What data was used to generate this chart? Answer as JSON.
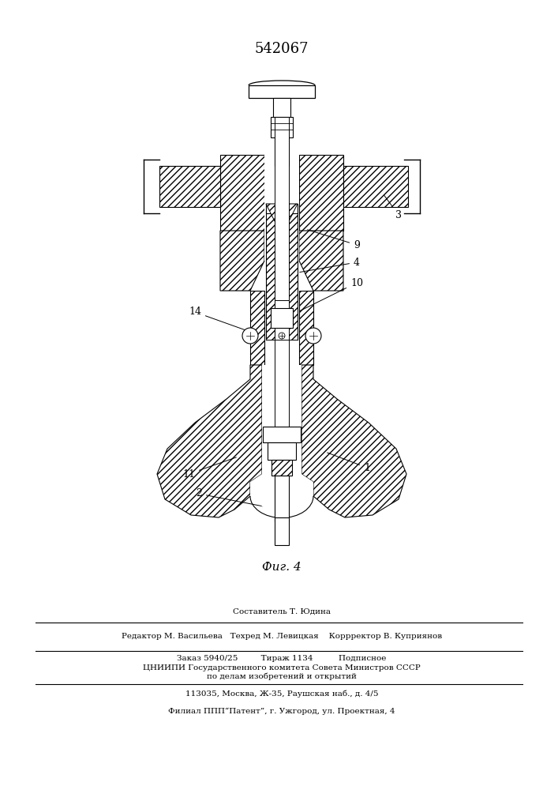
{
  "patent_number": "542067",
  "figure_label": "Фиг. 4",
  "bg_color": "#ffffff",
  "line_color": "#000000",
  "footer_lines": [
    "Составитель Т. Юдина",
    "Редактор М. Васильева   Техред М. Левицкая    Коррректор В. Куприянов",
    "Заказ 5940/25         Тираж 1134          Подписное",
    "ЦНИИПИ Государственного комитета Совета Министров СССР",
    "по делам изобретений и открытий",
    "113035, Москва, Ж-35, Раушская наб., д. 4/5",
    "Филиал ППП“Патент”, г. Ужгород, ул. Проектная, 4"
  ]
}
